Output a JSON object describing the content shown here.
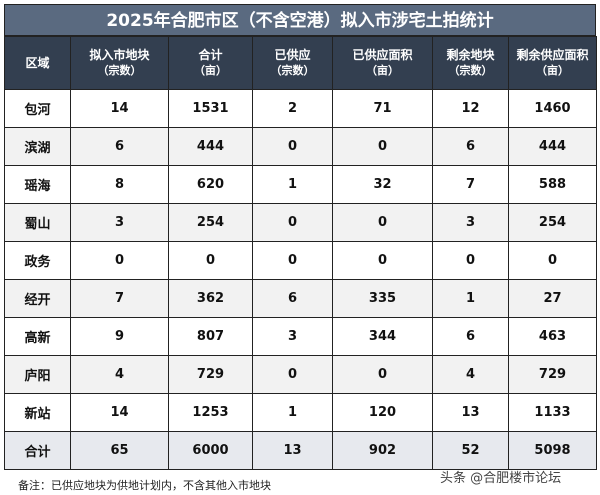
{
  "title": "2025年合肥市区（不含空港）拟入市涉宅土拍统计",
  "headers": [
    {
      "label": "区域",
      "unit": ""
    },
    {
      "label": "拟入市地块",
      "unit": "（宗数）"
    },
    {
      "label": "合计",
      "unit": "（亩）"
    },
    {
      "label": "已供应",
      "unit": "（宗数）"
    },
    {
      "label": "已供应面积",
      "unit": "（亩）"
    },
    {
      "label": "剩余地块",
      "unit": "（宗数）"
    },
    {
      "label": "剩余供应面积",
      "unit": "（亩）"
    }
  ],
  "rows": [
    [
      "包河",
      "14",
      "1531",
      "2",
      "71",
      "12",
      "1460"
    ],
    [
      "滨湖",
      "6",
      "444",
      "0",
      "0",
      "6",
      "444"
    ],
    [
      "瑶海",
      "8",
      "620",
      "1",
      "32",
      "7",
      "588"
    ],
    [
      "蜀山",
      "3",
      "254",
      "0",
      "0",
      "3",
      "254"
    ],
    [
      "政务",
      "0",
      "0",
      "0",
      "0",
      "0",
      "0"
    ],
    [
      "经开",
      "7",
      "362",
      "6",
      "335",
      "1",
      "27"
    ],
    [
      "高新",
      "9",
      "807",
      "3",
      "344",
      "6",
      "463"
    ],
    [
      "庐阳",
      "4",
      "729",
      "0",
      "0",
      "4",
      "729"
    ],
    [
      "新站",
      "14",
      "1253",
      "1",
      "120",
      "13",
      "1133"
    ],
    [
      "合计",
      "65",
      "6000",
      "13",
      "902",
      "52",
      "5098"
    ]
  ],
  "note": "备注：已供应地块为供地计划内，不含其他入市地块",
  "watermark": "头条 @合肥楼市论坛"
}
